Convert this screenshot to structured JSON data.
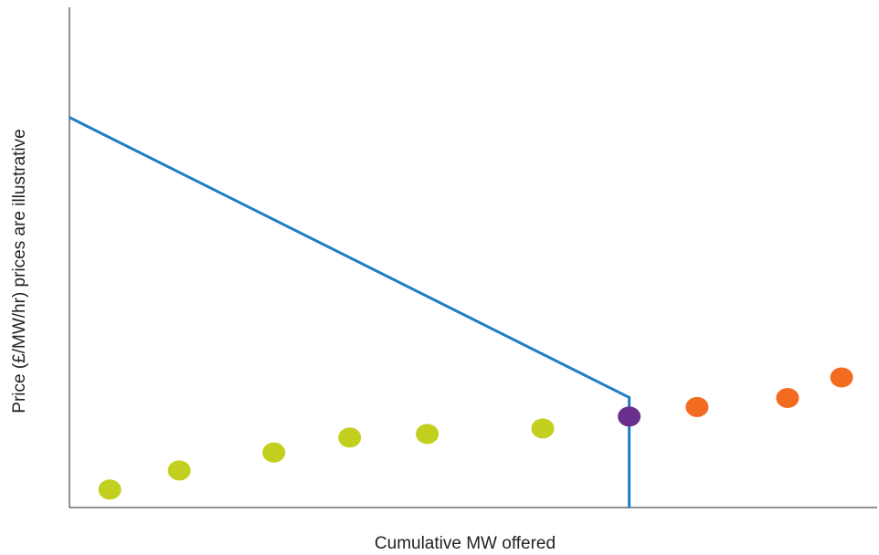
{
  "chart_data": {
    "type": "scatter",
    "title": "",
    "xlabel": "Cumulative MW offered",
    "ylabel": "Price (£/MW/hr) prices are illustrative",
    "xlim": [
      0,
      100
    ],
    "ylim": [
      0,
      100
    ],
    "grid": false,
    "legend": "none",
    "demand_curve": {
      "color": "#1f7fc4",
      "points": [
        {
          "x": 0,
          "y": 78
        },
        {
          "x": 69.3,
          "y": 22
        },
        {
          "x": 69.3,
          "y": 0
        }
      ]
    },
    "series": [
      {
        "color": "#c3cf1e",
        "points": [
          {
            "x": 5,
            "y": 3.6
          },
          {
            "x": 13.6,
            "y": 7.4
          },
          {
            "x": 25.3,
            "y": 11.0
          },
          {
            "x": 34.7,
            "y": 14.0
          },
          {
            "x": 44.3,
            "y": 14.7
          },
          {
            "x": 58.6,
            "y": 15.8
          }
        ]
      },
      {
        "color": "#6a2e8c",
        "points": [
          {
            "x": 69.3,
            "y": 18.2
          }
        ]
      },
      {
        "color": "#f26b21",
        "points": [
          {
            "x": 77.7,
            "y": 20.1
          },
          {
            "x": 88.9,
            "y": 21.9
          },
          {
            "x": 95.6,
            "y": 26.0
          }
        ]
      }
    ]
  }
}
